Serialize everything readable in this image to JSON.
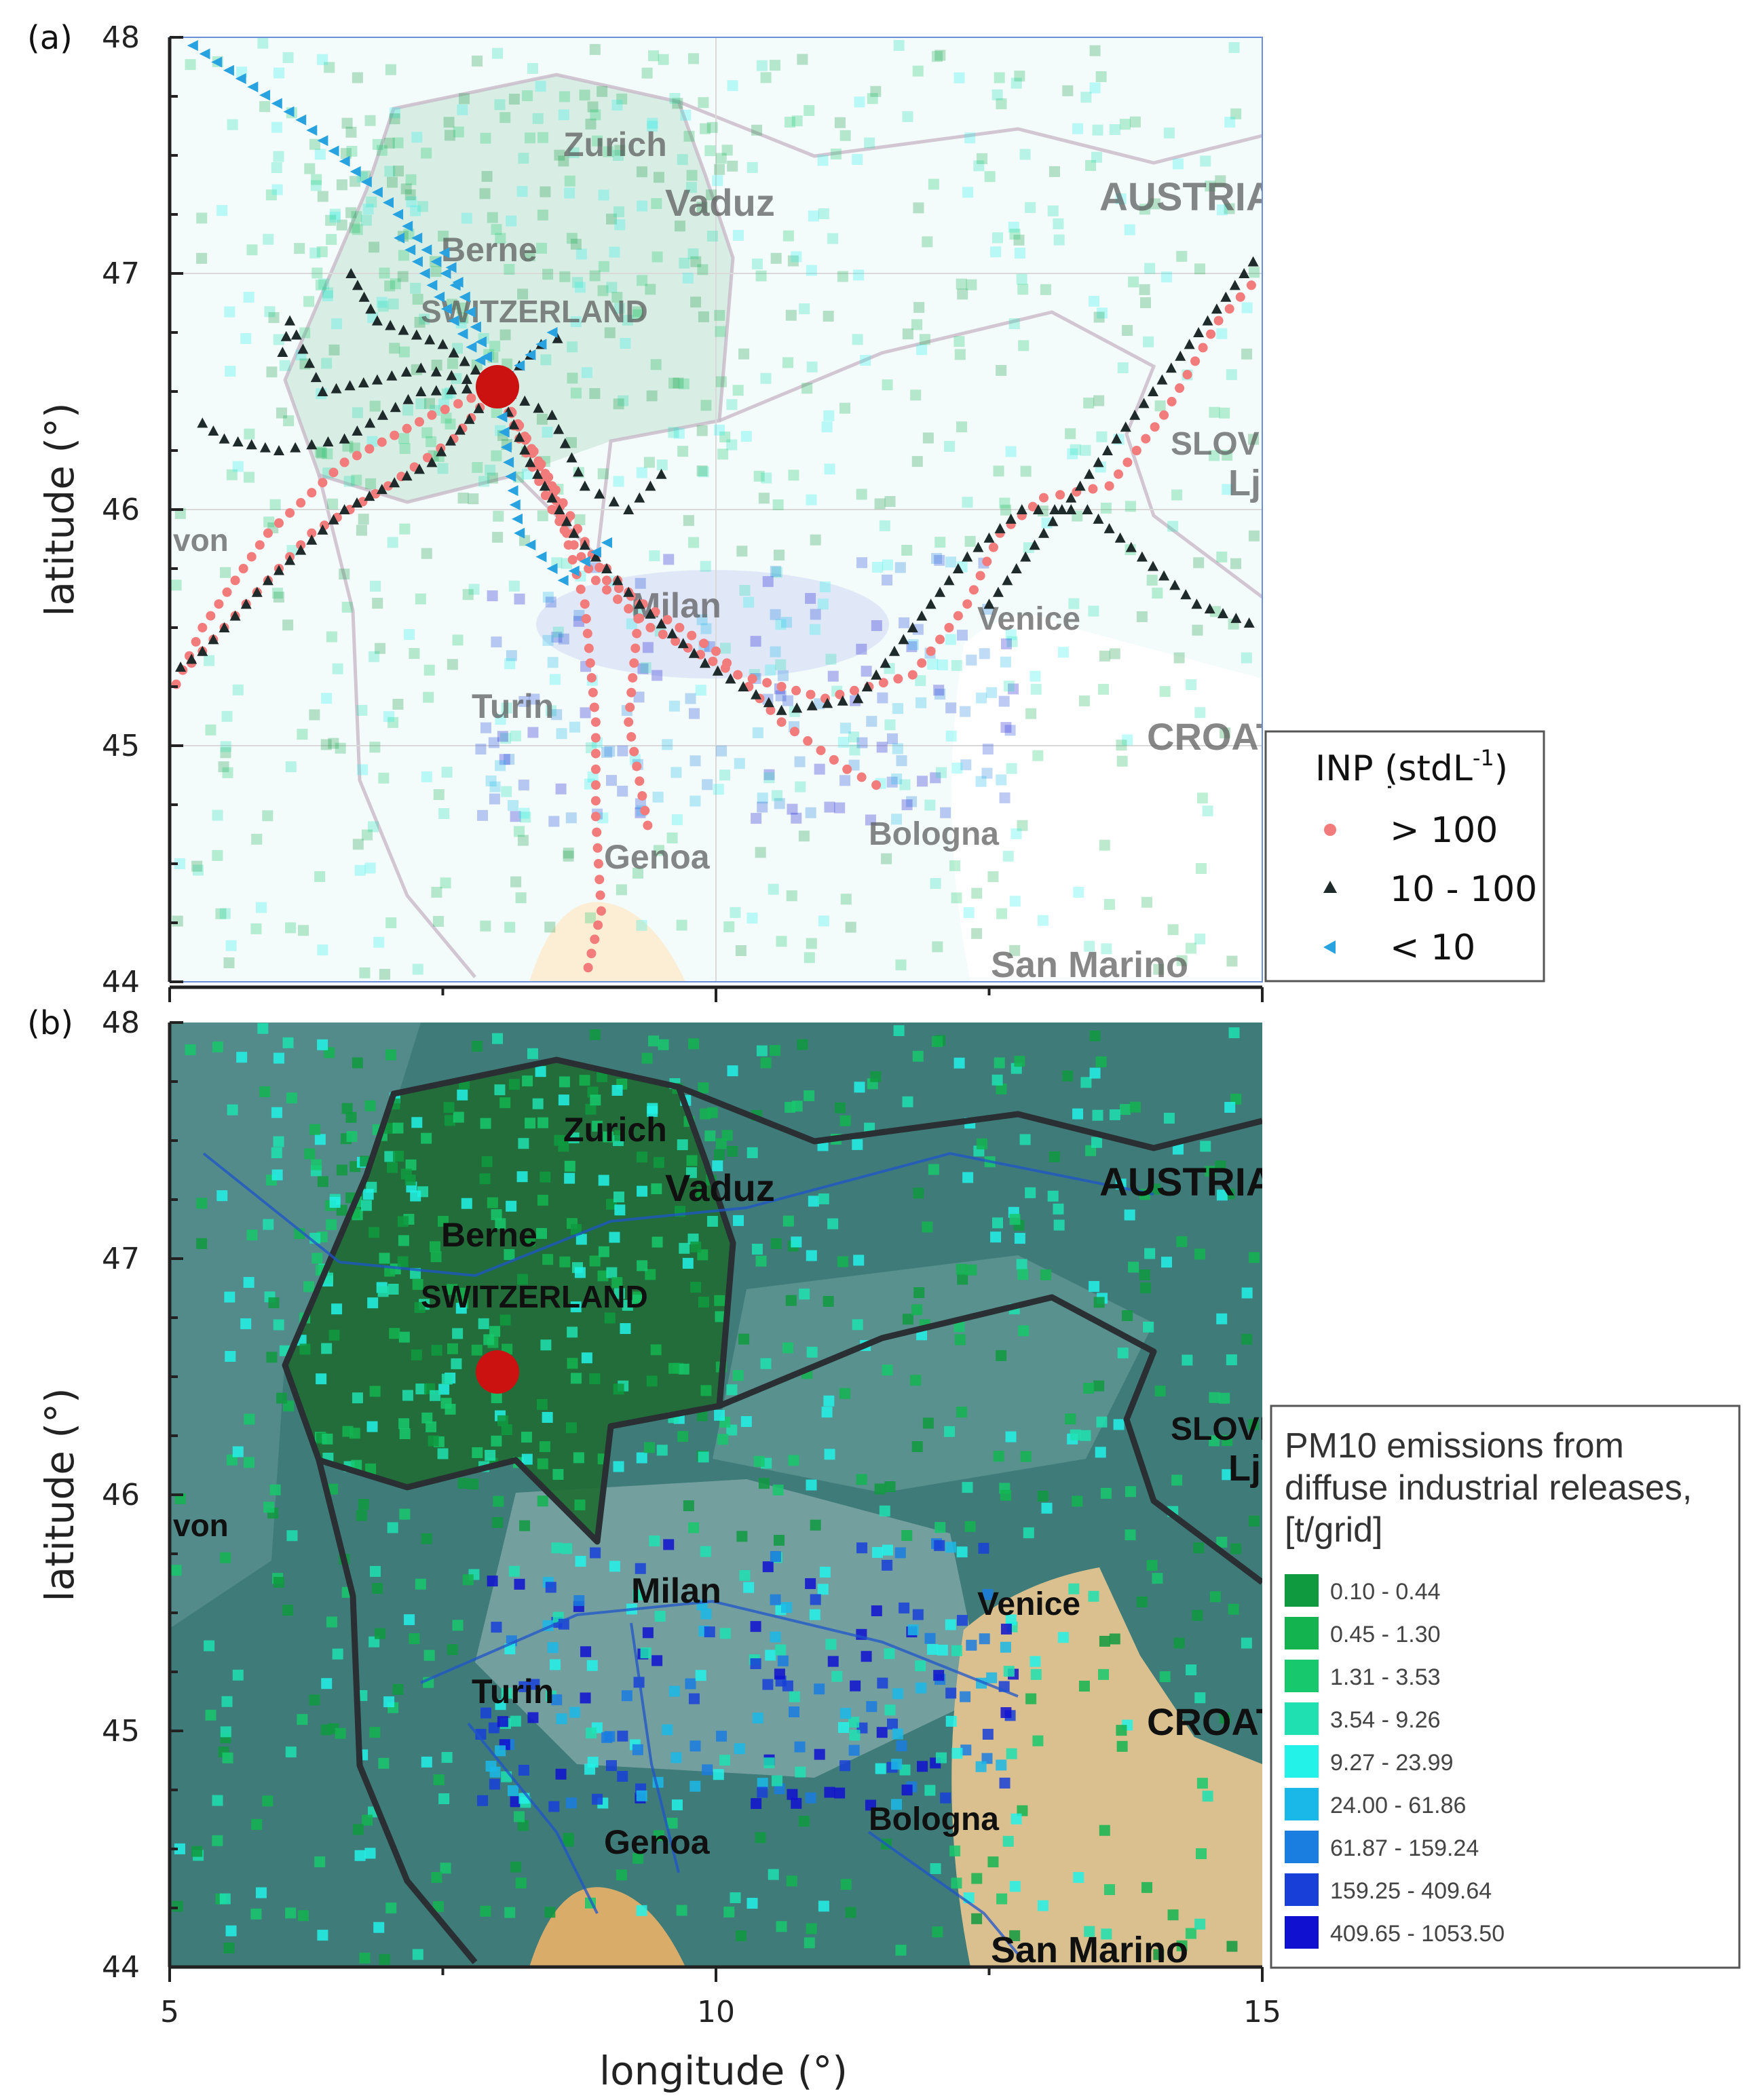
{
  "panel_a": {
    "label": "(a)",
    "xlim": [
      5,
      15
    ],
    "ylim": [
      44,
      48
    ],
    "y_ticks": [
      "48",
      "47",
      "46",
      "45",
      "44"
    ],
    "y_label": "latitude (°)",
    "site": {
      "lon": 8.0,
      "lat": 46.52
    },
    "place_names": [
      "Zurich",
      "Vaduz",
      "AUSTRIA",
      "Berne",
      "SWITZERLAND",
      "SLOVE",
      "Lj",
      "Milan",
      "Venice",
      "Turin",
      "CROAT",
      "Bologna",
      "Genoa",
      "San Marino",
      "von"
    ],
    "legend": {
      "title": "INP (stdL",
      "title_sup": "-1",
      "title_end": ")",
      "items": [
        {
          "label": "> 100",
          "color": "#f27b7b",
          "marker": "circle"
        },
        {
          "label": "10 - 100",
          "color": "#1f2a2a",
          "marker": "triangle"
        },
        {
          "label": "< 10",
          "color": "#29a3e0",
          "marker": "triangle-left"
        }
      ]
    }
  },
  "panel_b": {
    "label": "(b)",
    "y_ticks": [
      "48",
      "47",
      "46",
      "45",
      "44"
    ],
    "y_label": "latitude (°)",
    "x_ticks": [
      "5",
      "10",
      "15"
    ],
    "x_label": "longitude (°)",
    "place_names": [
      "Zurich",
      "Vaduz",
      "AUSTRIA",
      "Berne",
      "SWITZERLAND",
      "SLOVE",
      "Lj",
      "von",
      "Milan",
      "Venice",
      "Turin",
      "CROAT",
      "Bologna",
      "Genoa",
      "San Marino"
    ],
    "legend": {
      "title_lines": [
        "PM10 emissions from",
        "diffuse industrial releases,",
        "[t/grid]"
      ],
      "classes": [
        {
          "label": "0.10 - 0.44",
          "color": "#0f9a40"
        },
        {
          "label": "0.45 - 1.30",
          "color": "#13b450"
        },
        {
          "label": "1.31 - 3.53",
          "color": "#17c86c"
        },
        {
          "label": "3.54 - 9.26",
          "color": "#1ee0b0"
        },
        {
          "label": "9.27 - 23.99",
          "color": "#22f2e8"
        },
        {
          "label": "24.00 - 61.86",
          "color": "#1ab8e8"
        },
        {
          "label": "61.87 - 159.24",
          "color": "#1a7de0"
        },
        {
          "label": "159.25 - 409.64",
          "color": "#1840d8"
        },
        {
          "label": "409.65 - 1053.50",
          "color": "#1010d0"
        }
      ]
    }
  },
  "trajectories": [
    {
      "inp": "high",
      "color": "#f27b7b",
      "path": [
        [
          8.0,
          46.52
        ],
        [
          8.2,
          46.3
        ],
        [
          8.5,
          46.0
        ],
        [
          8.9,
          45.7
        ],
        [
          9.4,
          45.5
        ],
        [
          10.2,
          45.3
        ],
        [
          11.0,
          45.2
        ],
        [
          11.8,
          45.3
        ],
        [
          12.3,
          45.6
        ],
        [
          12.6,
          45.9
        ],
        [
          13.0,
          46.05
        ],
        [
          13.6,
          46.1
        ],
        [
          14.1,
          46.4
        ],
        [
          14.6,
          46.8
        ],
        [
          15.0,
          47.0
        ]
      ]
    },
    {
      "inp": "high",
      "color": "#f27b7b",
      "path": [
        [
          8.0,
          46.52
        ],
        [
          7.6,
          46.3
        ],
        [
          7.0,
          46.1
        ],
        [
          6.3,
          45.9
        ],
        [
          5.7,
          45.6
        ],
        [
          5.1,
          45.3
        ]
      ]
    },
    {
      "inp": "high",
      "color": "#f27b7b",
      "path": [
        [
          8.0,
          46.52
        ],
        [
          8.5,
          46.1
        ],
        [
          8.8,
          45.6
        ],
        [
          8.9,
          45.1
        ],
        [
          8.9,
          44.7
        ],
        [
          8.95,
          44.3
        ],
        [
          8.8,
          44.0
        ]
      ]
    },
    {
      "inp": "high",
      "color": "#f27b7b",
      "path": [
        [
          8.0,
          46.52
        ],
        [
          8.7,
          45.9
        ],
        [
          9.3,
          45.6
        ],
        [
          9.2,
          45.1
        ],
        [
          9.4,
          44.6
        ]
      ]
    },
    {
      "inp": "high",
      "color": "#f27b7b",
      "path": [
        [
          8.0,
          46.52
        ],
        [
          9.0,
          45.7
        ],
        [
          10.0,
          45.4
        ],
        [
          10.6,
          45.1
        ],
        [
          11.2,
          44.9
        ],
        [
          11.6,
          44.8
        ]
      ]
    },
    {
      "inp": "high",
      "color": "#f27b7b",
      "path": [
        [
          8.0,
          46.52
        ],
        [
          7.4,
          46.4
        ],
        [
          6.6,
          46.2
        ],
        [
          5.9,
          45.9
        ],
        [
          5.3,
          45.5
        ],
        [
          5.0,
          45.2
        ]
      ]
    },
    {
      "inp": "mid",
      "color": "#1f2a2a",
      "path": [
        [
          8.0,
          46.52
        ],
        [
          8.3,
          46.2
        ],
        [
          8.7,
          45.9
        ],
        [
          9.3,
          45.6
        ],
        [
          9.9,
          45.35
        ],
        [
          10.6,
          45.15
        ],
        [
          11.3,
          45.2
        ],
        [
          11.8,
          45.5
        ],
        [
          12.3,
          45.8
        ],
        [
          12.8,
          46.0
        ],
        [
          13.4,
          46.0
        ],
        [
          13.9,
          45.8
        ],
        [
          14.4,
          45.6
        ],
        [
          15.0,
          45.5
        ]
      ]
    },
    {
      "inp": "mid",
      "color": "#1f2a2a",
      "path": [
        [
          8.0,
          46.52
        ],
        [
          7.5,
          46.7
        ],
        [
          6.9,
          46.8
        ],
        [
          6.6,
          47.05
        ]
      ]
    },
    {
      "inp": "mid",
      "color": "#1f2a2a",
      "path": [
        [
          8.0,
          46.52
        ],
        [
          7.3,
          46.5
        ],
        [
          6.6,
          46.3
        ],
        [
          6.0,
          46.25
        ],
        [
          5.5,
          46.3
        ],
        [
          5.2,
          46.4
        ]
      ]
    },
    {
      "inp": "mid",
      "color": "#1f2a2a",
      "path": [
        [
          8.0,
          46.52
        ],
        [
          7.4,
          46.2
        ],
        [
          6.6,
          46.0
        ],
        [
          5.9,
          45.7
        ],
        [
          5.3,
          45.4
        ],
        [
          5.0,
          45.3
        ]
      ]
    },
    {
      "inp": "mid",
      "color": "#1f2a2a",
      "path": [
        [
          8.0,
          46.52
        ],
        [
          8.5,
          46.4
        ],
        [
          8.8,
          46.1
        ],
        [
          9.2,
          46.0
        ],
        [
          9.6,
          46.2
        ]
      ]
    },
    {
      "inp": "mid",
      "color": "#1f2a2a",
      "path": [
        [
          8.0,
          46.52
        ],
        [
          8.4,
          46.7
        ],
        [
          8.7,
          46.75
        ]
      ]
    },
    {
      "inp": "mid",
      "color": "#1f2a2a",
      "path": [
        [
          8.0,
          46.52
        ],
        [
          7.3,
          46.6
        ],
        [
          6.9,
          46.55
        ],
        [
          6.4,
          46.5
        ],
        [
          6.1,
          46.8
        ],
        [
          6.0,
          46.6
        ]
      ]
    },
    {
      "inp": "mid",
      "color": "#1f2a2a",
      "path": [
        [
          12.5,
          45.6
        ],
        [
          13.0,
          45.9
        ],
        [
          13.5,
          46.2
        ],
        [
          14.0,
          46.5
        ],
        [
          14.5,
          46.8
        ],
        [
          15.0,
          47.1
        ]
      ]
    },
    {
      "inp": "low",
      "color": "#29a3e0",
      "path": [
        [
          8.0,
          46.52
        ],
        [
          7.7,
          46.9
        ],
        [
          7.0,
          47.3
        ],
        [
          6.2,
          47.65
        ],
        [
          5.1,
          48.0
        ]
      ]
    },
    {
      "inp": "low",
      "color": "#29a3e0",
      "path": [
        [
          8.0,
          46.52
        ],
        [
          7.6,
          46.8
        ],
        [
          7.2,
          47.1
        ],
        [
          7.0,
          47.2
        ]
      ]
    },
    {
      "inp": "low",
      "color": "#29a3e0",
      "path": [
        [
          8.0,
          46.52
        ],
        [
          8.1,
          46.2
        ],
        [
          8.2,
          45.9
        ],
        [
          8.6,
          45.7
        ],
        [
          9.1,
          45.9
        ]
      ]
    },
    {
      "inp": "low",
      "color": "#29a3e0",
      "path": [
        [
          8.0,
          46.52
        ],
        [
          7.7,
          46.9
        ],
        [
          7.45,
          47.15
        ]
      ]
    },
    {
      "inp": "low",
      "color": "#29a3e0",
      "path": [
        [
          8.0,
          46.52
        ],
        [
          8.4,
          46.7
        ],
        [
          8.6,
          46.8
        ]
      ]
    }
  ]
}
